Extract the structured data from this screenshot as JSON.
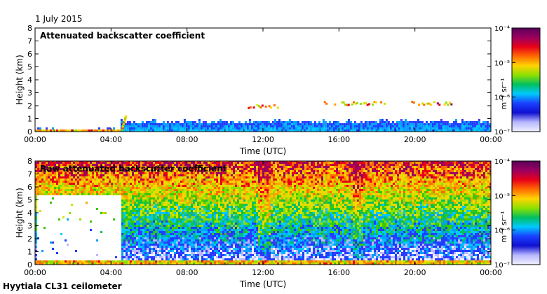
{
  "date_label": "1 July 2015",
  "footer_label": "Hyytiala CL31 ceilometer",
  "colorbar": {
    "unit_label": "m⁻¹ sr⁻¹",
    "ticks": [
      "10⁻⁴",
      "10⁻⁵",
      "10⁻⁶",
      "10⁻⁷"
    ],
    "colors": [
      "#5a005a",
      "#9b0060",
      "#e8001a",
      "#ff6a00",
      "#ffd400",
      "#8ee000",
      "#00c060",
      "#00c8ff",
      "#1a40ff",
      "#1010d0",
      "#b8b8ff",
      "#f0f0ff"
    ]
  },
  "chart_data": [
    {
      "type": "heatmap",
      "title": "Attenuated backscatter coefficient",
      "xlabel": "Time (UTC)",
      "ylabel": "Height (km)",
      "xticks": [
        "00:00",
        "04:00",
        "08:00",
        "12:00",
        "16:00",
        "20:00",
        "00:00"
      ],
      "yticks": [
        "0",
        "1",
        "2",
        "3",
        "4",
        "5",
        "6",
        "7",
        "8"
      ],
      "xlim_hours": [
        0,
        24
      ],
      "ylim_km": [
        0,
        8
      ],
      "log_scale_colorbar": true,
      "clim": [
        1e-07,
        0.0001
      ],
      "cloud_layers": [
        {
          "start_h": 11.2,
          "end_h": 12.8,
          "height_km": 1.9
        },
        {
          "start_h": 15.2,
          "end_h": 18.4,
          "height_km": 2.15
        },
        {
          "start_h": 19.8,
          "end_h": 22.0,
          "height_km": 2.15
        }
      ],
      "boundary_layer": [
        {
          "start_h": 0,
          "end_h": 4.5,
          "top_km": 0.15
        },
        {
          "start_h": 4.5,
          "end_h": 24,
          "top_km": 0.7
        }
      ]
    },
    {
      "type": "heatmap",
      "title": "Raw attenuated backscatter coefficient",
      "xlabel": "Time (UTC)",
      "ylabel": "Height (km)",
      "xticks": [
        "00:00",
        "04:00",
        "08:00",
        "12:00",
        "16:00",
        "20:00",
        "00:00"
      ],
      "yticks": [
        "0",
        "1",
        "2",
        "3",
        "4",
        "5",
        "6",
        "7",
        "8"
      ],
      "xlim_hours": [
        0,
        24
      ],
      "ylim_km": [
        0,
        8
      ],
      "log_scale_colorbar": true,
      "clim": [
        1e-07,
        0.0001
      ],
      "masked_region": {
        "start_h": 0.1,
        "end_h": 4.5,
        "bottom_km": 0.3,
        "top_km": 5.2
      }
    }
  ]
}
